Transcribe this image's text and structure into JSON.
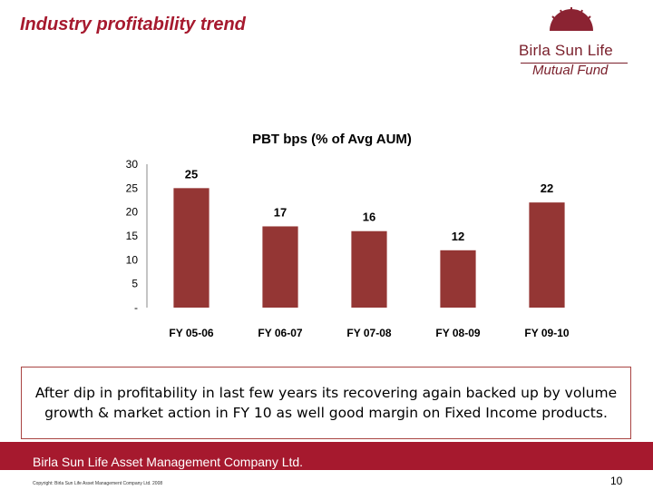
{
  "slide": {
    "title": "Industry profitability trend",
    "note": "After dip in profitability in last few years its recovering again backed up by volume growth & market action in FY 10 as well good margin on Fixed Income products.",
    "footer_company": "Birla Sun Life Asset Management Company Ltd.",
    "copyright": "Copyright: Birla Sun Life Asset Management Company Ltd. 2008",
    "page_number": "10"
  },
  "logo": {
    "line1": "Birla Sun Life",
    "line2": "Mutual Fund"
  },
  "colors": {
    "brand": "#a6192e",
    "bar": "#943634"
  },
  "chart_data": {
    "type": "bar",
    "title": "PBT bps (% of Avg AUM)",
    "categories": [
      "FY 05-06",
      "FY 06-07",
      "FY 07-08",
      "FY 08-09",
      "FY 09-10"
    ],
    "values": [
      25,
      17,
      16,
      12,
      22
    ],
    "value_labels": [
      "25",
      "17",
      "16",
      "12",
      "22"
    ],
    "y_ticks": [
      0,
      5,
      10,
      15,
      20,
      25,
      30
    ],
    "y_tick_labels": [
      "-",
      "5",
      "10",
      "15",
      "20",
      "25",
      "30"
    ],
    "ylim": [
      0,
      30
    ],
    "xlabel": "",
    "ylabel": "",
    "grid": false,
    "legend": "none"
  }
}
